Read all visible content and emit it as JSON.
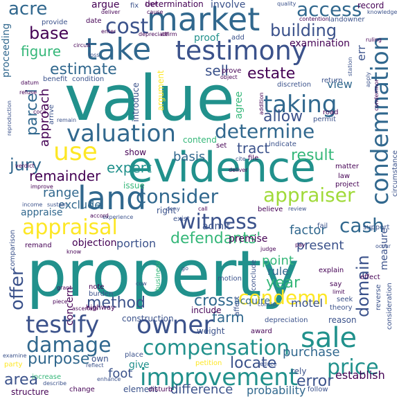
{
  "palette": {
    "dark_purple": "#440154",
    "indigo": "#3b528b",
    "slate_blue": "#31688e",
    "teal": "#21918c",
    "green": "#35b779",
    "light_green": "#5ec962",
    "yellow_green": "#a0da39",
    "yellow": "#fde725"
  },
  "words": [
    {
      "id": "property",
      "text": "property"
    },
    {
      "id": "value",
      "text": "value"
    },
    {
      "id": "evidence",
      "text": "evidence"
    },
    {
      "id": "market",
      "text": "market"
    },
    {
      "id": "testimony",
      "text": "testimony"
    },
    {
      "id": "take",
      "text": "take"
    },
    {
      "id": "valuation",
      "text": "valuation"
    },
    {
      "id": "land",
      "text": "land"
    },
    {
      "id": "condemnation",
      "text": "condemnation"
    },
    {
      "id": "improvement",
      "text": "improvement"
    },
    {
      "id": "compensation",
      "text": "compensation"
    },
    {
      "id": "testify",
      "text": "testify"
    },
    {
      "id": "sale",
      "text": "sale"
    },
    {
      "id": "owner",
      "text": "owner"
    },
    {
      "id": "witness",
      "text": "witness"
    },
    {
      "id": "appraisal",
      "text": "appraisal"
    },
    {
      "id": "use",
      "text": "use"
    },
    {
      "id": "taking",
      "text": "taking"
    },
    {
      "id": "determine",
      "text": "determine"
    },
    {
      "id": "consider",
      "text": "consider"
    },
    {
      "id": "appraiser",
      "text": "appraiser"
    },
    {
      "id": "damage",
      "text": "damage"
    },
    {
      "id": "price",
      "text": "price"
    },
    {
      "id": "cost",
      "text": "cost"
    },
    {
      "id": "acre",
      "text": "acre"
    },
    {
      "id": "access",
      "text": "access"
    },
    {
      "id": "building",
      "text": "building"
    },
    {
      "id": "base",
      "text": "base"
    },
    {
      "id": "estate",
      "text": "estate"
    },
    {
      "id": "estimate",
      "text": "estimate"
    },
    {
      "id": "parcel",
      "text": "parcel"
    },
    {
      "id": "jury",
      "text": "jury"
    },
    {
      "id": "cash",
      "text": "cash"
    },
    {
      "id": "defendants",
      "text": "defendants'"
    },
    {
      "id": "condemn",
      "text": "condemn"
    },
    {
      "id": "offer",
      "text": "offer"
    },
    {
      "id": "method",
      "text": "method"
    },
    {
      "id": "purpose",
      "text": "purpose"
    },
    {
      "id": "cross",
      "text": "cross"
    },
    {
      "id": "figure",
      "text": "figure"
    },
    {
      "id": "tract",
      "text": "tract"
    },
    {
      "id": "result",
      "text": "result"
    },
    {
      "id": "remainder",
      "text": "remainder"
    },
    {
      "id": "expert",
      "text": "expert"
    },
    {
      "id": "approach",
      "text": "approach"
    },
    {
      "id": "allow",
      "text": "allow"
    },
    {
      "id": "sell",
      "text": "sell"
    },
    {
      "id": "domain",
      "text": "domain"
    },
    {
      "id": "year",
      "text": "year"
    },
    {
      "id": "error",
      "text": "error"
    },
    {
      "id": "locate",
      "text": "locate"
    },
    {
      "id": "area",
      "text": "area"
    },
    {
      "id": "factor",
      "text": "factor"
    },
    {
      "id": "range",
      "text": "range"
    },
    {
      "id": "basis",
      "text": "basis"
    },
    {
      "id": "portion",
      "text": "portion"
    },
    {
      "id": "present",
      "text": "present"
    },
    {
      "id": "farm",
      "text": "farm"
    },
    {
      "id": "purchase",
      "text": "purchase"
    },
    {
      "id": "difference",
      "text": "difference"
    },
    {
      "id": "foot",
      "text": "foot"
    },
    {
      "id": "construction",
      "text": "construction"
    },
    {
      "id": "proof",
      "text": "proof"
    },
    {
      "id": "err",
      "text": "err"
    },
    {
      "id": "view",
      "text": "view"
    },
    {
      "id": "exclude",
      "text": "exclude"
    },
    {
      "id": "appraise",
      "text": "appraise"
    },
    {
      "id": "objection",
      "text": "objection"
    },
    {
      "id": "rule",
      "text": "rule"
    },
    {
      "id": "point",
      "text": "point"
    },
    {
      "id": "motel",
      "text": "motel"
    },
    {
      "id": "acquire",
      "text": "acquire"
    },
    {
      "id": "include",
      "text": "include"
    },
    {
      "id": "concern",
      "text": "concern"
    },
    {
      "id": "show",
      "text": "show"
    },
    {
      "id": "contend",
      "text": "contend"
    },
    {
      "id": "issue",
      "text": "issue"
    },
    {
      "id": "right",
      "text": "right"
    },
    {
      "id": "admit",
      "text": "admit"
    },
    {
      "id": "premise",
      "text": "premise"
    },
    {
      "id": "proceeding",
      "text": "proceeding"
    },
    {
      "id": "argue",
      "text": "argue"
    },
    {
      "id": "involve",
      "text": "involve"
    },
    {
      "id": "determination",
      "text": "determination"
    },
    {
      "id": "record",
      "text": "record"
    },
    {
      "id": "examination",
      "text": "examination"
    },
    {
      "id": "reason",
      "text": "reason"
    },
    {
      "id": "give",
      "text": "give"
    },
    {
      "id": "establish",
      "text": "establish"
    },
    {
      "id": "probability",
      "text": "probability"
    },
    {
      "id": "measure",
      "text": "measure"
    },
    {
      "id": "own",
      "text": "own"
    },
    {
      "id": "date",
      "text": "date"
    },
    {
      "id": "provide",
      "text": "provide"
    },
    {
      "id": "fix",
      "text": "fix"
    },
    {
      "id": "landowner",
      "text": "landowner"
    },
    {
      "id": "add",
      "text": "add"
    },
    {
      "id": "argument",
      "text": "argument"
    },
    {
      "id": "introduce",
      "text": "introduce"
    },
    {
      "id": "agree",
      "text": "agree"
    },
    {
      "id": "prove",
      "text": "prove"
    },
    {
      "id": "return",
      "text": "return"
    },
    {
      "id": "discretion",
      "text": "discretion"
    },
    {
      "id": "benefit",
      "text": "benefit"
    },
    {
      "id": "condition",
      "text": "condition"
    },
    {
      "id": "permit",
      "text": "permit"
    },
    {
      "id": "road",
      "text": "road"
    },
    {
      "id": "indicate",
      "text": "indicate"
    },
    {
      "id": "set",
      "text": "set"
    },
    {
      "id": "file",
      "text": "file"
    },
    {
      "id": "cite",
      "text": "cite"
    },
    {
      "id": "matter",
      "text": "matter"
    },
    {
      "id": "law",
      "text": "law"
    },
    {
      "id": "project",
      "text": "project"
    },
    {
      "id": "support",
      "text": "support"
    },
    {
      "id": "circumstance",
      "text": "circumstance"
    },
    {
      "id": "believe",
      "text": "believe"
    },
    {
      "id": "review",
      "text": "review"
    },
    {
      "id": "exist",
      "text": "exist"
    },
    {
      "id": "fail",
      "text": "fail"
    },
    {
      "id": "deny",
      "text": "deny"
    },
    {
      "id": "call",
      "text": "call"
    },
    {
      "id": "sustain",
      "text": "sustain"
    },
    {
      "id": "income",
      "text": "income"
    },
    {
      "id": "experience",
      "text": "experience"
    },
    {
      "id": "remand",
      "text": "remand"
    },
    {
      "id": "comparison",
      "text": "comparison"
    },
    {
      "id": "note",
      "text": "note"
    },
    {
      "id": "burden",
      "text": "burden"
    },
    {
      "id": "highway",
      "text": "highway"
    },
    {
      "id": "business",
      "text": "business"
    },
    {
      "id": "motion",
      "text": "motion"
    },
    {
      "id": "judge",
      "text": "judge"
    },
    {
      "id": "explain",
      "text": "explain"
    },
    {
      "id": "effect",
      "text": "effect"
    },
    {
      "id": "say",
      "text": "say"
    },
    {
      "id": "seek",
      "text": "seek"
    },
    {
      "id": "theory",
      "text": "theory"
    },
    {
      "id": "depreciation",
      "text": "depreciation"
    },
    {
      "id": "weight",
      "text": "weight"
    },
    {
      "id": "award",
      "text": "award"
    },
    {
      "id": "consideration",
      "text": "consideration"
    },
    {
      "id": "reverse",
      "text": "reverse"
    },
    {
      "id": "petition",
      "text": "petition"
    },
    {
      "id": "place",
      "text": "place"
    },
    {
      "id": "element",
      "text": "element"
    },
    {
      "id": "disturb",
      "text": "disturb"
    },
    {
      "id": "change",
      "text": "change"
    },
    {
      "id": "enhance",
      "text": "enhance"
    },
    {
      "id": "increase",
      "text": "increase"
    },
    {
      "id": "structure",
      "text": "structure"
    },
    {
      "id": "describe",
      "text": "describe"
    },
    {
      "id": "party",
      "text": "party"
    },
    {
      "id": "examine",
      "text": "examine"
    },
    {
      "id": "reflect",
      "text": "reflect"
    },
    {
      "id": "reduce",
      "text": "reduce"
    },
    {
      "id": "rely",
      "text": "rely"
    },
    {
      "id": "follow",
      "text": "follow"
    },
    {
      "id": "refuse",
      "text": "refuse"
    },
    {
      "id": "arrive",
      "text": "arrive"
    },
    {
      "id": "remain",
      "text": "remain"
    },
    {
      "id": "verdict",
      "text": "verdict"
    },
    {
      "id": "reproduction",
      "text": "reproduction"
    },
    {
      "id": "improve",
      "text": "improve"
    },
    {
      "id": "accord",
      "text": "accord"
    },
    {
      "id": "circuit",
      "text": "circuit"
    },
    {
      "id": "enter",
      "text": "enter"
    },
    {
      "id": "cause",
      "text": "cause"
    },
    {
      "id": "deliver",
      "text": "deliver"
    },
    {
      "id": "type",
      "text": "type"
    },
    {
      "id": "quality",
      "text": "quality"
    },
    {
      "id": "knowledge",
      "text": "knowledge"
    },
    {
      "id": "contention",
      "text": "contention"
    },
    {
      "id": "ruling",
      "text": "ruling"
    },
    {
      "id": "depreciate",
      "text": "depreciate"
    },
    {
      "id": "affirm",
      "text": "affirm"
    },
    {
      "id": "loss",
      "text": "loss"
    },
    {
      "id": "apply",
      "text": "apply"
    },
    {
      "id": "condemnor",
      "text": "condemnor"
    },
    {
      "id": "addition",
      "text": "addition"
    },
    {
      "id": "object",
      "text": "object"
    },
    {
      "id": "conclude",
      "text": "conclude"
    },
    {
      "id": "affect",
      "text": "affect"
    },
    {
      "id": "limit",
      "text": "limit"
    },
    {
      "id": "consist",
      "text": "consist"
    },
    {
      "id": "ascertain",
      "text": "ascertain"
    },
    {
      "id": "pay",
      "text": "pay"
    },
    {
      "id": "occur",
      "text": "occur"
    },
    {
      "id": "know",
      "text": "know"
    },
    {
      "id": "cow",
      "text": "cow"
    },
    {
      "id": "go",
      "text": "go"
    },
    {
      "id": "piece",
      "text": "piece"
    },
    {
      "id": "grant",
      "text": "grant"
    },
    {
      "id": "station",
      "text": "station"
    },
    {
      "id": "deliver2",
      "text": "deliver"
    },
    {
      "id": "coca",
      "text": "coca"
    },
    {
      "id": "datum",
      "text": "datum"
    }
  ]
}
